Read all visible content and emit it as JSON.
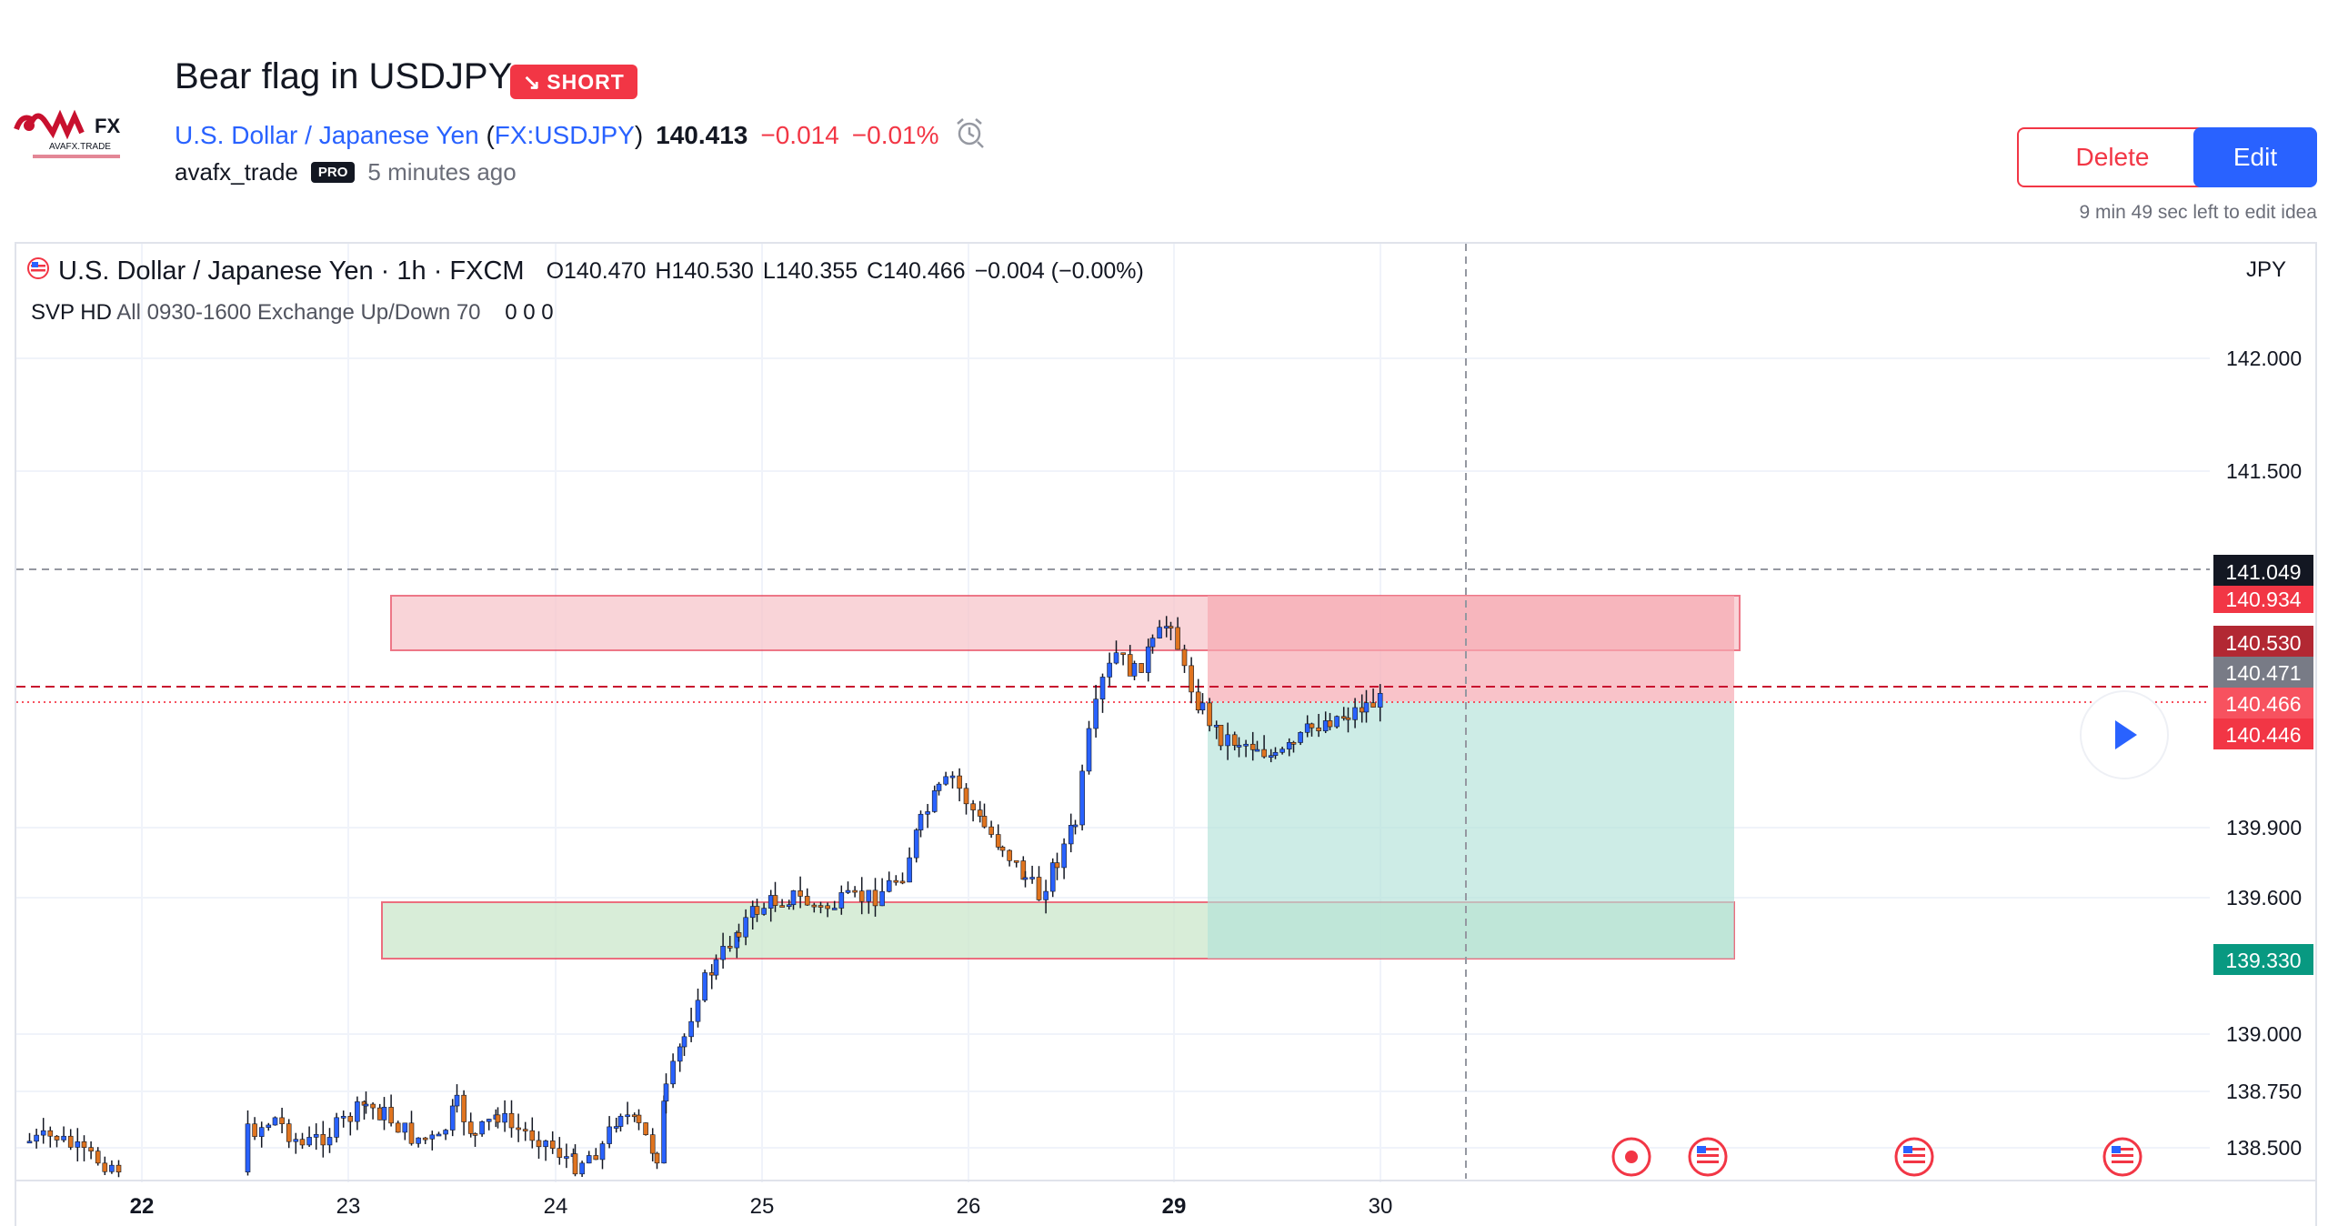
{
  "header": {
    "logo_text": "AVAFX",
    "title": "Bear flag in USDJPY",
    "direction_badge": "SHORT",
    "direction_icon": "arrow-down-right-icon",
    "symbol_name": "U.S. Dollar / Japanese Yen",
    "symbol_ticker": "FX:USDJPY",
    "last_price": "140.413",
    "change": "−0.014",
    "change_pct": "−0.01%",
    "author": "avafx_trade",
    "author_badge": "PRO",
    "posted": "5 minutes ago",
    "delete_label": "Delete",
    "edit_label": "Edit",
    "edit_timer": "9 min 49 sec left to edit idea"
  },
  "legend": {
    "symbol": "U.S. Dollar / Japanese Yen · 1h · FXCM",
    "open": "O140.470",
    "high": "H140.530",
    "low": "L140.355",
    "close": "C140.466",
    "change": "−0.004 (−0.00%)",
    "indicator_name": "SVP HD",
    "indicator_params": "All 0930-1600 Exchange Up/Down 70",
    "indicator_values": "0 0 0"
  },
  "chart_data": {
    "type": "candlestick",
    "currency": "JPY",
    "x_ticks": [
      "22",
      "23",
      "24",
      "25",
      "26",
      "29",
      "30"
    ],
    "y_ticks": [
      "142.000",
      "141.500",
      "139.900",
      "139.600",
      "139.000",
      "138.750",
      "138.500"
    ],
    "price_labels": [
      {
        "value": "141.049",
        "color": "#131722"
      },
      {
        "value": "140.934",
        "color": "#f23645"
      },
      {
        "value": "140.530",
        "color": "#b22833"
      },
      {
        "value": "140.471",
        "color": "#787b86"
      },
      {
        "value": "140.466",
        "color": "#f7525f"
      },
      {
        "value": "140.446",
        "color": "#f23645"
      },
      {
        "value": "139.330",
        "color": "#089981"
      }
    ],
    "colors": {
      "up": "#2962ff",
      "down": "#e0741f",
      "wick": "#131722"
    }
  }
}
